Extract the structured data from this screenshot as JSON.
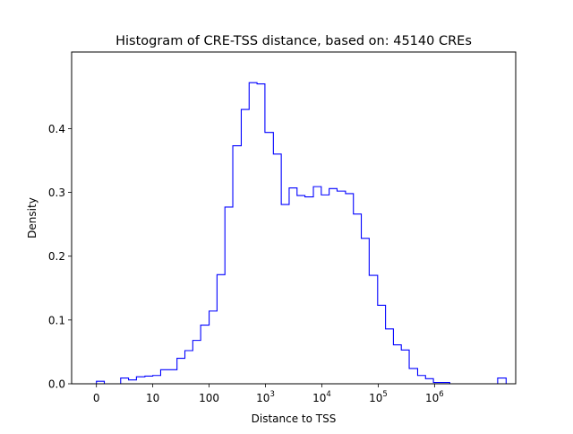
{
  "chart_data": {
    "type": "histogram",
    "title": "Histogram of CRE-TSS distance, based on: 45140 CREs",
    "xlabel": "Distance to TSS",
    "ylabel": "Density",
    "x_scale": "log1p (log10(distance + 1))",
    "xlim_log10": [
      -0.44,
      7.44
    ],
    "ylim": [
      0,
      0.52
    ],
    "grid": false,
    "legend": "none",
    "line_color": "#0000ff",
    "x_ticks": [
      {
        "pos": 0,
        "base": "0",
        "exp": ""
      },
      {
        "pos": 1,
        "base": "10",
        "exp": ""
      },
      {
        "pos": 2,
        "base": "100",
        "exp": ""
      },
      {
        "pos": 3,
        "base": "10",
        "exp": "3"
      },
      {
        "pos": 4,
        "base": "10",
        "exp": "4"
      },
      {
        "pos": 5,
        "base": "10",
        "exp": "5"
      },
      {
        "pos": 6,
        "base": "10",
        "exp": "6"
      }
    ],
    "y_ticks": [
      "0.0",
      "0.1",
      "0.2",
      "0.3",
      "0.4"
    ],
    "y_tick_values": [
      0,
      0.1,
      0.2,
      0.3,
      0.4
    ],
    "bin_edges_log10": [
      0,
      0.14,
      0.29,
      0.43,
      0.57,
      0.71,
      0.86,
      1.0,
      1.14,
      1.28,
      1.43,
      1.57,
      1.71,
      1.85,
      2.0,
      2.14,
      2.28,
      2.42,
      2.57,
      2.71,
      2.85,
      2.99,
      3.14,
      3.28,
      3.42,
      3.56,
      3.7,
      3.85,
      3.99,
      4.13,
      4.27,
      4.42,
      4.56,
      4.7,
      4.84,
      4.99,
      5.13,
      5.27,
      5.41,
      5.55,
      5.7,
      5.84,
      5.98,
      6.12,
      6.27,
      6.41,
      6.55,
      6.69,
      6.84,
      6.98,
      7.12,
      7.27
    ],
    "density": [
      0.004,
      0.0,
      0.0,
      0.009,
      0.006,
      0.011,
      0.012,
      0.013,
      0.022,
      0.022,
      0.04,
      0.052,
      0.068,
      0.092,
      0.114,
      0.171,
      0.277,
      0.373,
      0.43,
      0.472,
      0.47,
      0.394,
      0.36,
      0.281,
      0.307,
      0.295,
      0.293,
      0.309,
      0.296,
      0.306,
      0.302,
      0.298,
      0.266,
      0.228,
      0.17,
      0.123,
      0.086,
      0.061,
      0.053,
      0.024,
      0.013,
      0.008,
      0.002,
      0.002,
      0.0,
      0.0,
      0.0,
      0.0,
      0.0,
      0.0,
      0.009
    ]
  }
}
